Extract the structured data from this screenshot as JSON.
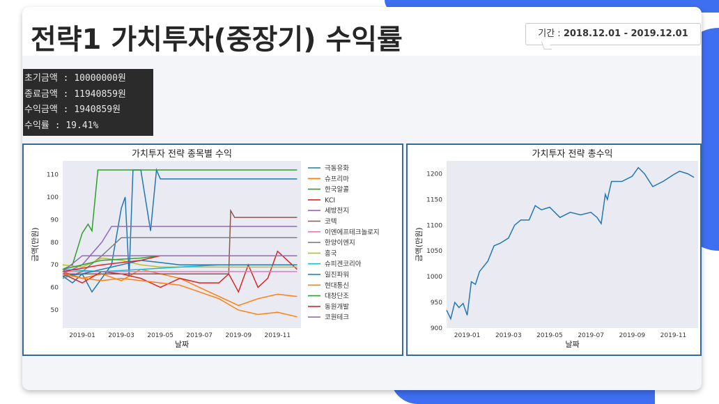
{
  "title": "전략1 가치투자(중장기) 수익률",
  "period": {
    "label": "기간 : ",
    "value": "2018.12.01 - 2019.12.01"
  },
  "console_lines": [
    "초기금액 : 10000000원",
    "종료금액 : 11940859원",
    "수익금액 : 1940859원",
    "수익률 : 19.41%"
  ],
  "colors": {
    "accent": "#3d6ff0",
    "panel_border": "#36689c",
    "plot_bg": "#eaeaf2"
  },
  "chart_data": [
    {
      "type": "line",
      "title": "가치투자 전략 종목별 수익",
      "xlabel": "날짜",
      "ylabel": "금액(만원)",
      "ylim": [
        42,
        116
      ],
      "xlim": [
        0,
        12.2
      ],
      "x_ticks": [
        {
          "x": 1,
          "label": "2019-01"
        },
        {
          "x": 3,
          "label": "2019-03"
        },
        {
          "x": 5,
          "label": "2019-05"
        },
        {
          "x": 7,
          "label": "2019-07"
        },
        {
          "x": 9,
          "label": "2019-09"
        },
        {
          "x": 11,
          "label": "2019-11"
        }
      ],
      "y_ticks": [
        50,
        60,
        70,
        80,
        90,
        100,
        110
      ],
      "grid": false,
      "legend": "right",
      "series": [
        {
          "name": "극동유화",
          "color": "#1f77b4",
          "points": [
            [
              0,
              65
            ],
            [
              0.5,
              62
            ],
            [
              1,
              66
            ],
            [
              1.5,
              58
            ],
            [
              2,
              64
            ],
            [
              2.5,
              70
            ],
            [
              3,
              95
            ],
            [
              3.2,
              100
            ],
            [
              3.4,
              65
            ],
            [
              3.6,
              112
            ],
            [
              4,
              112
            ],
            [
              4.5,
              85
            ],
            [
              4.8,
              112
            ],
            [
              5,
              108
            ],
            [
              12,
              108
            ]
          ]
        },
        {
          "name": "슈프리마",
          "color": "#ff7f0e",
          "points": [
            [
              0,
              67
            ],
            [
              1,
              64
            ],
            [
              2,
              66
            ],
            [
              3,
              63
            ],
            [
              4,
              68
            ],
            [
              5,
              66
            ],
            [
              6,
              64
            ],
            [
              7,
              60
            ],
            [
              8,
              56
            ],
            [
              9,
              52
            ],
            [
              10,
              55
            ],
            [
              11,
              57
            ],
            [
              12,
              56
            ]
          ]
        },
        {
          "name": "한국알콜",
          "color": "#2ca02c",
          "points": [
            [
              0,
              68
            ],
            [
              0.5,
              70
            ],
            [
              1,
              84
            ],
            [
              1.3,
              88
            ],
            [
              1.5,
              85
            ],
            [
              1.8,
              112
            ],
            [
              12,
              112
            ]
          ]
        },
        {
          "name": "KCI",
          "color": "#d62728",
          "points": [
            [
              0,
              66
            ],
            [
              1,
              62
            ],
            [
              2,
              67
            ],
            [
              3,
              66
            ],
            [
              4,
              64
            ],
            [
              5,
              60
            ],
            [
              6,
              64
            ],
            [
              7,
              62
            ],
            [
              8,
              62
            ],
            [
              8.5,
              66
            ],
            [
              9,
              58
            ],
            [
              9.5,
              70
            ],
            [
              10,
              60
            ],
            [
              10.5,
              64
            ],
            [
              11,
              76
            ],
            [
              11.5,
              72
            ],
            [
              12,
              68
            ]
          ]
        },
        {
          "name": "세방전지",
          "color": "#9467bd",
          "points": [
            [
              0,
              66
            ],
            [
              1,
              70
            ],
            [
              2,
              80
            ],
            [
              2.5,
              87
            ],
            [
              12,
              87
            ]
          ]
        },
        {
          "name": "코텍",
          "color": "#8c564b",
          "points": [
            [
              0,
              66
            ],
            [
              8.5,
              66
            ],
            [
              8.6,
              94
            ],
            [
              8.8,
              91
            ],
            [
              12,
              91
            ]
          ]
        },
        {
          "name": "이엔에프테크놀로지",
          "color": "#e377c2",
          "points": [
            [
              0,
              67
            ],
            [
              12,
              67
            ]
          ]
        },
        {
          "name": "한양이엔지",
          "color": "#7f7f7f",
          "points": [
            [
              0,
              64
            ],
            [
              1,
              67
            ],
            [
              2,
              74
            ],
            [
              3,
              82
            ],
            [
              12,
              82
            ]
          ]
        },
        {
          "name": "흥국",
          "color": "#bcbd22",
          "points": [
            [
              0,
              70
            ],
            [
              1,
              69
            ],
            [
              2,
              73
            ],
            [
              3,
              72
            ],
            [
              4,
              70
            ],
            [
              5,
              69
            ],
            [
              12,
              69
            ]
          ]
        },
        {
          "name": "슈피겐코리아",
          "color": "#17becf",
          "points": [
            [
              0,
              68
            ],
            [
              2,
              67
            ],
            [
              4,
              68
            ],
            [
              6,
              69
            ],
            [
              8,
              70
            ],
            [
              12,
              70
            ]
          ]
        },
        {
          "name": "일진파워",
          "color": "#1f77b4",
          "points": [
            [
              0,
              65
            ],
            [
              1,
              66
            ],
            [
              2,
              68
            ],
            [
              3,
              70
            ],
            [
              4,
              72
            ],
            [
              5,
              71
            ],
            [
              6,
              70
            ],
            [
              12,
              70
            ]
          ]
        },
        {
          "name": "현대통신",
          "color": "#ff7f0e",
          "points": [
            [
              0,
              66
            ],
            [
              1,
              64
            ],
            [
              2,
              63
            ],
            [
              3,
              64
            ],
            [
              4,
              63
            ],
            [
              5,
              62
            ],
            [
              6,
              61
            ],
            [
              7,
              58
            ],
            [
              8,
              55
            ],
            [
              9,
              50
            ],
            [
              10,
              48
            ],
            [
              11,
              49
            ],
            [
              12,
              47
            ]
          ]
        },
        {
          "name": "대창단조",
          "color": "#2ca02c",
          "points": [
            [
              0,
              68
            ],
            [
              2,
              72
            ],
            [
              4,
              73
            ],
            [
              5,
              74
            ],
            [
              12,
              74
            ]
          ]
        },
        {
          "name": "동원개발",
          "color": "#d62728",
          "points": [
            [
              0,
              67
            ],
            [
              2,
              70
            ],
            [
              4,
              72
            ],
            [
              5,
              74
            ],
            [
              12,
              74
            ]
          ]
        },
        {
          "name": "코원테크",
          "color": "#9467bd",
          "points": [
            [
              0,
              67
            ],
            [
              1,
              74
            ],
            [
              12,
              74
            ]
          ]
        }
      ]
    },
    {
      "type": "line",
      "title": "가치투자 전략 총수익",
      "xlabel": "날짜",
      "ylabel": "금액(만원)",
      "ylim": [
        900,
        1225
      ],
      "xlim": [
        0,
        12.2
      ],
      "x_ticks": [
        {
          "x": 1,
          "label": "2019-01"
        },
        {
          "x": 3,
          "label": "2019-03"
        },
        {
          "x": 5,
          "label": "2019-05"
        },
        {
          "x": 7,
          "label": "2019-07"
        },
        {
          "x": 9,
          "label": "2019-09"
        },
        {
          "x": 11,
          "label": "2019-11"
        }
      ],
      "y_ticks": [
        900,
        950,
        1000,
        1050,
        1100,
        1150,
        1200
      ],
      "grid": false,
      "series": [
        {
          "color": "#1f77b4",
          "points": [
            [
              0,
              935
            ],
            [
              0.2,
              918
            ],
            [
              0.4,
              950
            ],
            [
              0.6,
              940
            ],
            [
              0.8,
              948
            ],
            [
              1,
              925
            ],
            [
              1.2,
              990
            ],
            [
              1.4,
              985
            ],
            [
              1.6,
              1010
            ],
            [
              2,
              1030
            ],
            [
              2.3,
              1060
            ],
            [
              2.6,
              1065
            ],
            [
              3,
              1075
            ],
            [
              3.3,
              1100
            ],
            [
              3.6,
              1110
            ],
            [
              4,
              1110
            ],
            [
              4.3,
              1138
            ],
            [
              4.6,
              1130
            ],
            [
              5,
              1135
            ],
            [
              5.5,
              1115
            ],
            [
              6,
              1125
            ],
            [
              6.5,
              1120
            ],
            [
              7,
              1125
            ],
            [
              7.3,
              1115
            ],
            [
              7.5,
              1103
            ],
            [
              7.7,
              1160
            ],
            [
              7.8,
              1150
            ],
            [
              8,
              1185
            ],
            [
              8.5,
              1185
            ],
            [
              9,
              1195
            ],
            [
              9.3,
              1212
            ],
            [
              9.6,
              1200
            ],
            [
              10,
              1175
            ],
            [
              10.5,
              1185
            ],
            [
              11,
              1198
            ],
            [
              11.3,
              1205
            ],
            [
              11.7,
              1200
            ],
            [
              12,
              1193
            ]
          ]
        }
      ]
    }
  ]
}
